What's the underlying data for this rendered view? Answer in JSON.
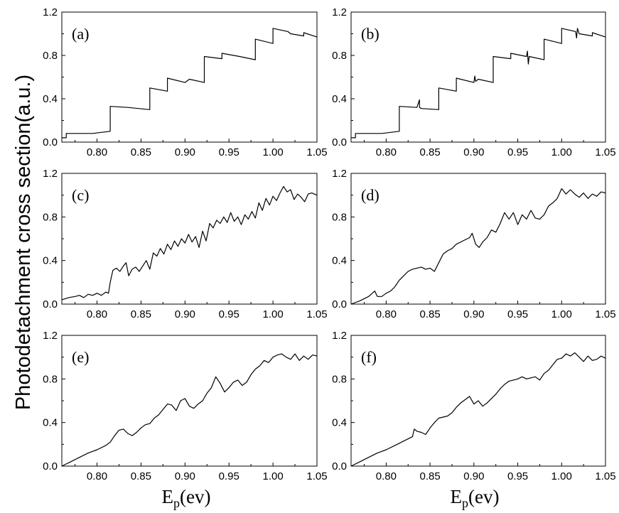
{
  "figure": {
    "ylabel": "Photodetachment cross section(a.u.)",
    "xlabel_left": {
      "main": "E",
      "sub": "p",
      "rest": "(ev)"
    },
    "xlabel_right": {
      "main": "E",
      "sub": "p",
      "rest": "(ev)"
    }
  },
  "chart_data": [
    {
      "type": "line",
      "panel_label": "(a)",
      "xlim": [
        0.76,
        1.05
      ],
      "ylim": [
        0.0,
        1.2
      ],
      "xticks": [
        "0.80",
        "0.85",
        "0.90",
        "0.95",
        "1.00",
        "1.05"
      ],
      "yticks": [
        "0.0",
        "0.4",
        "0.8",
        "1.2"
      ],
      "series": [
        {
          "x": [
            0.76,
            0.765,
            0.765,
            0.78,
            0.795,
            0.815,
            0.815,
            0.835,
            0.86,
            0.86,
            0.88,
            0.88,
            0.9,
            0.905,
            0.905,
            0.922,
            0.922,
            0.942,
            0.942,
            0.962,
            0.962,
            0.98,
            0.98,
            1.0,
            1.0,
            1.017,
            1.02,
            1.02,
            1.035,
            1.035,
            1.05
          ],
          "y": [
            0.04,
            0.04,
            0.08,
            0.08,
            0.08,
            0.1,
            0.33,
            0.32,
            0.3,
            0.5,
            0.47,
            0.59,
            0.55,
            0.58,
            0.58,
            0.55,
            0.79,
            0.77,
            0.82,
            0.79,
            0.79,
            0.76,
            0.95,
            0.91,
            1.05,
            1.02,
            1.0,
            1.0,
            0.98,
            1.01,
            0.97
          ]
        }
      ]
    },
    {
      "type": "line",
      "panel_label": "(b)",
      "xlim": [
        0.76,
        1.05
      ],
      "ylim": [
        0.0,
        1.2
      ],
      "xticks": [
        "0.80",
        "0.85",
        "0.90",
        "0.95",
        "1.00",
        "1.05"
      ],
      "yticks": [
        "0.0",
        "0.4",
        "0.8",
        "1.2"
      ],
      "series": [
        {
          "x": [
            0.76,
            0.765,
            0.765,
            0.78,
            0.795,
            0.815,
            0.815,
            0.835,
            0.838,
            0.838,
            0.84,
            0.86,
            0.86,
            0.88,
            0.88,
            0.9,
            0.901,
            0.902,
            0.905,
            0.922,
            0.922,
            0.942,
            0.942,
            0.96,
            0.961,
            0.962,
            0.963,
            0.98,
            0.98,
            1.0,
            1.0,
            1.016,
            1.017,
            1.018,
            1.02,
            1.035,
            1.035,
            1.05
          ],
          "y": [
            0.04,
            0.04,
            0.08,
            0.08,
            0.08,
            0.1,
            0.33,
            0.32,
            0.39,
            0.32,
            0.31,
            0.3,
            0.5,
            0.47,
            0.59,
            0.55,
            0.61,
            0.56,
            0.58,
            0.55,
            0.79,
            0.77,
            0.82,
            0.79,
            0.84,
            0.72,
            0.79,
            0.76,
            0.95,
            0.91,
            1.05,
            1.02,
            0.96,
            1.05,
            1.0,
            0.98,
            1.01,
            0.97
          ]
        }
      ]
    },
    {
      "type": "line",
      "panel_label": "(c)",
      "xlim": [
        0.76,
        1.05
      ],
      "ylim": [
        0.0,
        1.2
      ],
      "xticks": [
        "0.80",
        "0.85",
        "0.90",
        "0.95",
        "1.00",
        "1.05"
      ],
      "yticks": [
        "0.0",
        "0.4",
        "0.8",
        "1.2"
      ],
      "series": [
        {
          "x": [
            0.76,
            0.768,
            0.775,
            0.78,
            0.785,
            0.79,
            0.795,
            0.8,
            0.805,
            0.81,
            0.813,
            0.815,
            0.818,
            0.822,
            0.826,
            0.83,
            0.833,
            0.836,
            0.84,
            0.844,
            0.848,
            0.852,
            0.856,
            0.86,
            0.864,
            0.868,
            0.872,
            0.876,
            0.88,
            0.884,
            0.888,
            0.892,
            0.896,
            0.9,
            0.904,
            0.908,
            0.912,
            0.916,
            0.92,
            0.924,
            0.928,
            0.932,
            0.936,
            0.94,
            0.944,
            0.948,
            0.952,
            0.956,
            0.96,
            0.964,
            0.968,
            0.972,
            0.976,
            0.98,
            0.984,
            0.988,
            0.992,
            0.996,
            1.0,
            1.004,
            1.008,
            1.012,
            1.016,
            1.02,
            1.024,
            1.028,
            1.032,
            1.036,
            1.04,
            1.044,
            1.05
          ],
          "y": [
            0.04,
            0.06,
            0.07,
            0.08,
            0.06,
            0.09,
            0.08,
            0.1,
            0.08,
            0.11,
            0.1,
            0.2,
            0.31,
            0.33,
            0.3,
            0.35,
            0.38,
            0.26,
            0.32,
            0.34,
            0.3,
            0.35,
            0.4,
            0.32,
            0.47,
            0.44,
            0.51,
            0.46,
            0.55,
            0.5,
            0.58,
            0.53,
            0.6,
            0.56,
            0.64,
            0.57,
            0.62,
            0.52,
            0.67,
            0.58,
            0.74,
            0.7,
            0.77,
            0.74,
            0.8,
            0.75,
            0.84,
            0.76,
            0.8,
            0.73,
            0.82,
            0.78,
            0.85,
            0.79,
            0.93,
            0.86,
            0.97,
            0.91,
            0.99,
            0.95,
            1.02,
            1.08,
            1.03,
            1.05,
            0.96,
            1.01,
            0.98,
            0.94,
            1.01,
            1.02,
            1.0
          ]
        }
      ]
    },
    {
      "type": "line",
      "panel_label": "(d)",
      "xlim": [
        0.76,
        1.05
      ],
      "ylim": [
        0.0,
        1.2
      ],
      "xticks": [
        "0.80",
        "0.85",
        "0.90",
        "0.95",
        "1.00",
        "1.05"
      ],
      "yticks": [
        "0.0",
        "0.4",
        "0.8",
        "1.2"
      ],
      "series": [
        {
          "x": [
            0.76,
            0.77,
            0.78,
            0.787,
            0.79,
            0.795,
            0.8,
            0.805,
            0.81,
            0.815,
            0.82,
            0.825,
            0.83,
            0.835,
            0.84,
            0.845,
            0.85,
            0.855,
            0.86,
            0.865,
            0.87,
            0.875,
            0.88,
            0.885,
            0.89,
            0.895,
            0.898,
            0.902,
            0.906,
            0.91,
            0.915,
            0.92,
            0.925,
            0.93,
            0.935,
            0.94,
            0.945,
            0.95,
            0.955,
            0.96,
            0.965,
            0.97,
            0.975,
            0.98,
            0.985,
            0.99,
            0.995,
            1.0,
            1.005,
            1.01,
            1.015,
            1.02,
            1.025,
            1.03,
            1.035,
            1.04,
            1.045,
            1.05
          ],
          "y": [
            0.0,
            0.03,
            0.07,
            0.12,
            0.07,
            0.07,
            0.1,
            0.12,
            0.16,
            0.22,
            0.26,
            0.3,
            0.32,
            0.33,
            0.34,
            0.32,
            0.33,
            0.3,
            0.38,
            0.46,
            0.49,
            0.51,
            0.55,
            0.57,
            0.59,
            0.61,
            0.65,
            0.55,
            0.52,
            0.57,
            0.61,
            0.68,
            0.66,
            0.74,
            0.84,
            0.78,
            0.84,
            0.73,
            0.82,
            0.78,
            0.86,
            0.79,
            0.78,
            0.82,
            0.9,
            0.93,
            0.97,
            1.06,
            1.01,
            1.05,
            1.01,
            0.98,
            1.02,
            0.97,
            1.01,
            0.99,
            1.03,
            1.02
          ]
        }
      ]
    },
    {
      "type": "line",
      "panel_label": "(e)",
      "xlim": [
        0.76,
        1.05
      ],
      "ylim": [
        0.0,
        1.2
      ],
      "xticks": [
        "0.80",
        "0.85",
        "0.90",
        "0.95",
        "1.00",
        "1.05"
      ],
      "yticks": [
        "0.0",
        "0.4",
        "0.8",
        "1.2"
      ],
      "series": [
        {
          "x": [
            0.76,
            0.77,
            0.78,
            0.79,
            0.8,
            0.81,
            0.815,
            0.82,
            0.825,
            0.83,
            0.835,
            0.84,
            0.845,
            0.85,
            0.855,
            0.86,
            0.865,
            0.87,
            0.875,
            0.88,
            0.885,
            0.89,
            0.895,
            0.9,
            0.905,
            0.91,
            0.915,
            0.92,
            0.925,
            0.93,
            0.935,
            0.94,
            0.945,
            0.95,
            0.955,
            0.96,
            0.965,
            0.97,
            0.975,
            0.98,
            0.985,
            0.99,
            0.995,
            1.0,
            1.005,
            1.01,
            1.015,
            1.02,
            1.025,
            1.03,
            1.035,
            1.04,
            1.045,
            1.05
          ],
          "y": [
            0.0,
            0.04,
            0.08,
            0.12,
            0.15,
            0.19,
            0.22,
            0.28,
            0.33,
            0.34,
            0.3,
            0.28,
            0.31,
            0.35,
            0.38,
            0.39,
            0.44,
            0.47,
            0.52,
            0.57,
            0.56,
            0.51,
            0.6,
            0.62,
            0.55,
            0.53,
            0.57,
            0.6,
            0.67,
            0.72,
            0.82,
            0.76,
            0.68,
            0.72,
            0.77,
            0.79,
            0.74,
            0.77,
            0.84,
            0.89,
            0.92,
            0.97,
            0.95,
            1.0,
            1.02,
            1.03,
            1.0,
            0.98,
            1.03,
            0.97,
            1.01,
            0.98,
            1.02,
            1.01
          ]
        }
      ]
    },
    {
      "type": "line",
      "panel_label": "(f)",
      "xlim": [
        0.76,
        1.05
      ],
      "ylim": [
        0.0,
        1.2
      ],
      "xticks": [
        "0.80",
        "0.85",
        "0.90",
        "0.95",
        "1.00",
        "1.05"
      ],
      "yticks": [
        "0.0",
        "0.4",
        "0.8",
        "1.2"
      ],
      "series": [
        {
          "x": [
            0.76,
            0.77,
            0.78,
            0.79,
            0.8,
            0.81,
            0.82,
            0.83,
            0.832,
            0.835,
            0.84,
            0.845,
            0.85,
            0.855,
            0.86,
            0.865,
            0.87,
            0.875,
            0.88,
            0.885,
            0.89,
            0.895,
            0.9,
            0.905,
            0.91,
            0.915,
            0.92,
            0.925,
            0.93,
            0.935,
            0.94,
            0.945,
            0.95,
            0.955,
            0.96,
            0.965,
            0.97,
            0.975,
            0.98,
            0.985,
            0.99,
            0.995,
            1.0,
            1.005,
            1.01,
            1.015,
            1.02,
            1.025,
            1.03,
            1.035,
            1.04,
            1.045,
            1.05
          ],
          "y": [
            0.0,
            0.04,
            0.08,
            0.12,
            0.15,
            0.19,
            0.23,
            0.27,
            0.34,
            0.32,
            0.31,
            0.29,
            0.35,
            0.4,
            0.44,
            0.45,
            0.46,
            0.49,
            0.54,
            0.58,
            0.61,
            0.64,
            0.57,
            0.6,
            0.55,
            0.58,
            0.62,
            0.66,
            0.71,
            0.75,
            0.78,
            0.79,
            0.8,
            0.82,
            0.8,
            0.81,
            0.82,
            0.79,
            0.85,
            0.88,
            0.93,
            0.98,
            0.99,
            1.03,
            1.01,
            1.04,
            1.0,
            0.96,
            1.01,
            0.97,
            0.98,
            1.01,
            0.99
          ]
        }
      ]
    }
  ]
}
